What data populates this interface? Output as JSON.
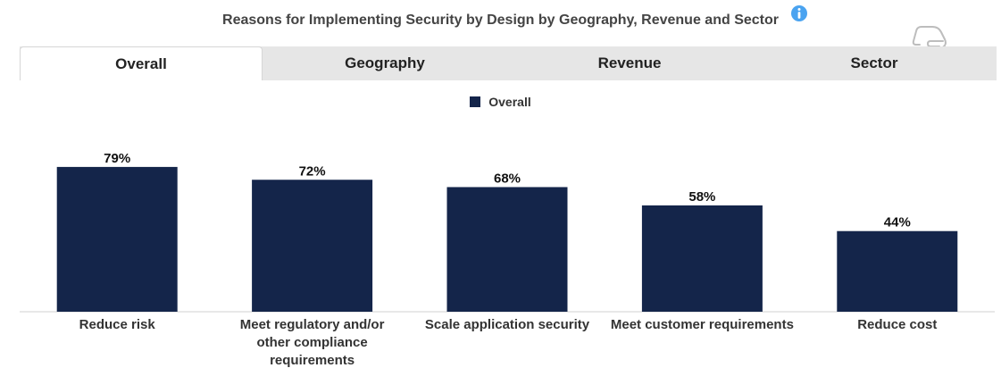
{
  "header": {
    "title": "Reasons for Implementing Security by Design by Geography, Revenue and Sector"
  },
  "icons": {
    "info": "info-icon",
    "pointer": "hand-pointer-icon"
  },
  "tabs": [
    {
      "label": "Overall",
      "active": true
    },
    {
      "label": "Geography",
      "active": false
    },
    {
      "label": "Revenue",
      "active": false
    },
    {
      "label": "Sector",
      "active": false
    }
  ],
  "colors": {
    "bar": "#14254a",
    "info": "#4aa3f0",
    "tab_bg": "#e6e6e6"
  },
  "chart_data": {
    "type": "bar",
    "categories": [
      [
        "Reduce risk"
      ],
      [
        "Meet regulatory and/or",
        "other compliance",
        "requirements"
      ],
      [
        "Scale application security"
      ],
      [
        "Meet customer requirements"
      ],
      [
        "Reduce cost"
      ]
    ],
    "series": [
      {
        "name": "Overall",
        "values": [
          79,
          72,
          68,
          58,
          44
        ]
      }
    ],
    "value_labels": [
      "79%",
      "72%",
      "68%",
      "58%",
      "44%"
    ],
    "ylim": [
      0,
      100
    ],
    "grid": false,
    "legend": "top-center"
  }
}
